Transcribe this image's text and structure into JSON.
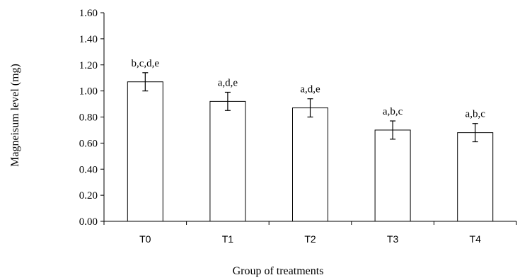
{
  "chart_data": {
    "type": "bar",
    "categories": [
      "T0",
      "T1",
      "T2",
      "T3",
      "T4"
    ],
    "values": [
      1.07,
      0.92,
      0.87,
      0.7,
      0.68
    ],
    "errors": [
      0.07,
      0.07,
      0.07,
      0.07,
      0.07
    ],
    "annotations": [
      "b,c,d,e",
      "a,d,e",
      "a,d,e",
      "a,b,c",
      "a,b,c"
    ],
    "xlabel": "Group of treatments",
    "ylabel": "Magneisum level (mg)",
    "ylim": [
      0,
      1.6
    ],
    "yticks": [
      "0.00",
      "0.20",
      "0.40",
      "0.60",
      "0.80",
      "1.00",
      "1.20",
      "1.40",
      "1.60"
    ],
    "grid": false,
    "legend": "none",
    "bar_fill": "#ffffff",
    "bar_stroke": "#000000"
  }
}
